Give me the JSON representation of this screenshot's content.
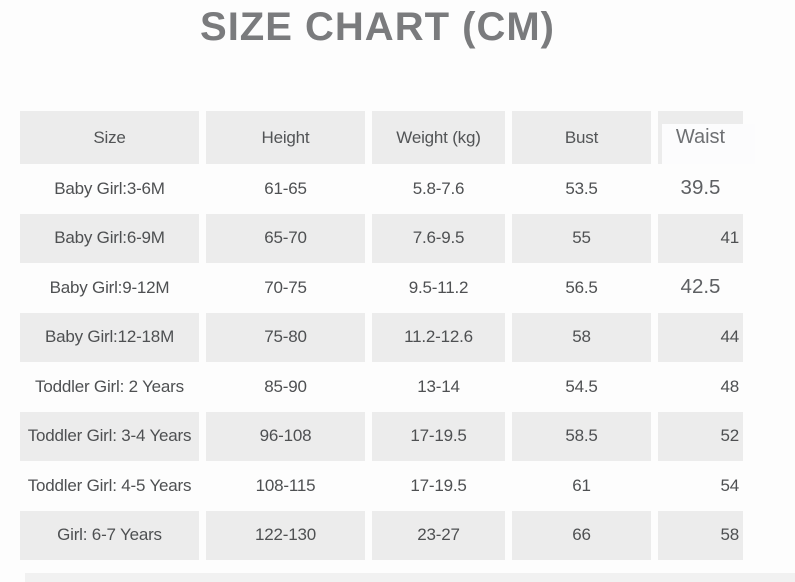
{
  "title": "SIZE CHART (CM)",
  "table": {
    "headers": [
      "Size",
      "Height",
      "Weight (kg)",
      "Bust",
      "Waist"
    ],
    "rows": [
      {
        "size": "Baby Girl:3-6M",
        "height": "61-65",
        "weight": "5.8-7.6",
        "bust": "53.5",
        "waist": "39.5"
      },
      {
        "size": "Baby Girl:6-9M",
        "height": "65-70",
        "weight": "7.6-9.5",
        "bust": "55",
        "waist": "41"
      },
      {
        "size": "Baby Girl:9-12M",
        "height": "70-75",
        "weight": "9.5-11.2",
        "bust": "56.5",
        "waist": "42.5"
      },
      {
        "size": "Baby Girl:12-18M",
        "height": "75-80",
        "weight": "11.2-12.6",
        "bust": "58",
        "waist": "44"
      },
      {
        "size": "Toddler Girl: 2 Years",
        "height": "85-90",
        "weight": "13-14",
        "bust": "54.5",
        "waist": "48"
      },
      {
        "size": "Toddler Girl: 3-4 Years",
        "height": "96-108",
        "weight": "17-19.5",
        "bust": "58.5",
        "waist": "52"
      },
      {
        "size": "Toddler Girl: 4-5 Years",
        "height": "108-115",
        "weight": "17-19.5",
        "bust": "61",
        "waist": "54"
      },
      {
        "size": "Girl: 6-7 Years",
        "height": "122-130",
        "weight": "23-27",
        "bust": "66",
        "waist": "58"
      }
    ]
  },
  "colors": {
    "page_bg": "#fdfdfd",
    "row_gray": "#ececec",
    "cell_text": "#4e5052",
    "header_text": "#525456",
    "title_text": "#7a7b7d",
    "waist_text": "#6e7073",
    "pasted_text": "#5e6063",
    "patch_white": "#fcfcfd",
    "bottom_strip": "#f1f1f1"
  }
}
